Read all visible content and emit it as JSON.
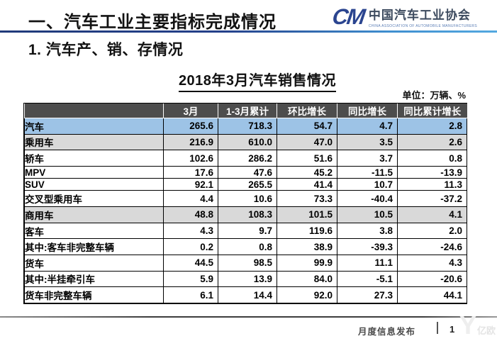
{
  "slide": {
    "section_title": "一、汽车工业主要指标完成情况",
    "subsection_title": "1. 汽车产、销、存情况"
  },
  "logo": {
    "monogram": "CM",
    "org_name_cn": "中国汽车工业协会",
    "org_name_en": "CHINA ASSOCIATION OF AUTOMOBILE MANUFACTURERS"
  },
  "table": {
    "title": "2018年3月汽车销售情况",
    "unit_note": "单位：万辆、%",
    "headers": [
      "",
      "3月",
      "1-3月累计",
      "环比增长",
      "同比增长",
      "同比累计增长"
    ],
    "rows": [
      {
        "label": "汽车",
        "indent": 0,
        "highlight": "blue",
        "values": [
          "265.6",
          "718.3",
          "54.7",
          "4.7",
          "2.8"
        ]
      },
      {
        "label": "乘用车",
        "indent": 1,
        "highlight": "gray",
        "values": [
          "216.9",
          "610.0",
          "47.0",
          "3.5",
          "2.6"
        ]
      },
      {
        "label": "轿车",
        "indent": 2,
        "highlight": "none",
        "values": [
          "102.6",
          "286.2",
          "51.6",
          "3.7",
          "0.8"
        ]
      },
      {
        "label": "MPV",
        "indent": 2,
        "highlight": "none",
        "values": [
          "17.6",
          "47.6",
          "45.2",
          "-11.5",
          "-13.9"
        ]
      },
      {
        "label": "SUV",
        "indent": 2,
        "highlight": "none",
        "values": [
          "92.1",
          "265.5",
          "41.4",
          "10.7",
          "11.3"
        ]
      },
      {
        "label": "交叉型乘用车",
        "indent": 2,
        "highlight": "none",
        "values": [
          "4.4",
          "10.6",
          "73.3",
          "-40.4",
          "-37.2"
        ]
      },
      {
        "label": "商用车",
        "indent": 1,
        "highlight": "gray",
        "values": [
          "48.8",
          "108.3",
          "101.5",
          "10.5",
          "4.1"
        ]
      },
      {
        "label": "客车",
        "indent": 2,
        "highlight": "none",
        "values": [
          "4.3",
          "9.7",
          "119.6",
          "3.8",
          "2.0"
        ]
      },
      {
        "label": "其中:客车非完整车辆",
        "indent": 3,
        "highlight": "none",
        "values": [
          "0.2",
          "0.8",
          "38.9",
          "-39.3",
          "-24.6"
        ]
      },
      {
        "label": "货车",
        "indent": 2,
        "highlight": "none",
        "values": [
          "44.5",
          "98.5",
          "99.9",
          "11.1",
          "4.3"
        ]
      },
      {
        "label": "其中:半挂牵引车",
        "indent": 3,
        "highlight": "none",
        "values": [
          "5.9",
          "13.9",
          "84.0",
          "-5.1",
          "-20.6"
        ]
      },
      {
        "label": "货车非完整车辆",
        "indent": 3,
        "highlight": "none",
        "values": [
          "6.1",
          "14.4",
          "92.0",
          "27.3",
          "44.1"
        ]
      }
    ]
  },
  "footer": {
    "label": "月度信息发布",
    "page_number": "1"
  },
  "watermark": {
    "text": "亿欧"
  },
  "colors": {
    "accent_navy": "#24408a",
    "accent_light_blue": "#54a9e0",
    "table_header_bg": "#4d4d4d",
    "row_highlight_blue": "#9dc3e6",
    "row_highlight_gray": "#d9d9d9",
    "logo_blue": "#2b4590"
  }
}
